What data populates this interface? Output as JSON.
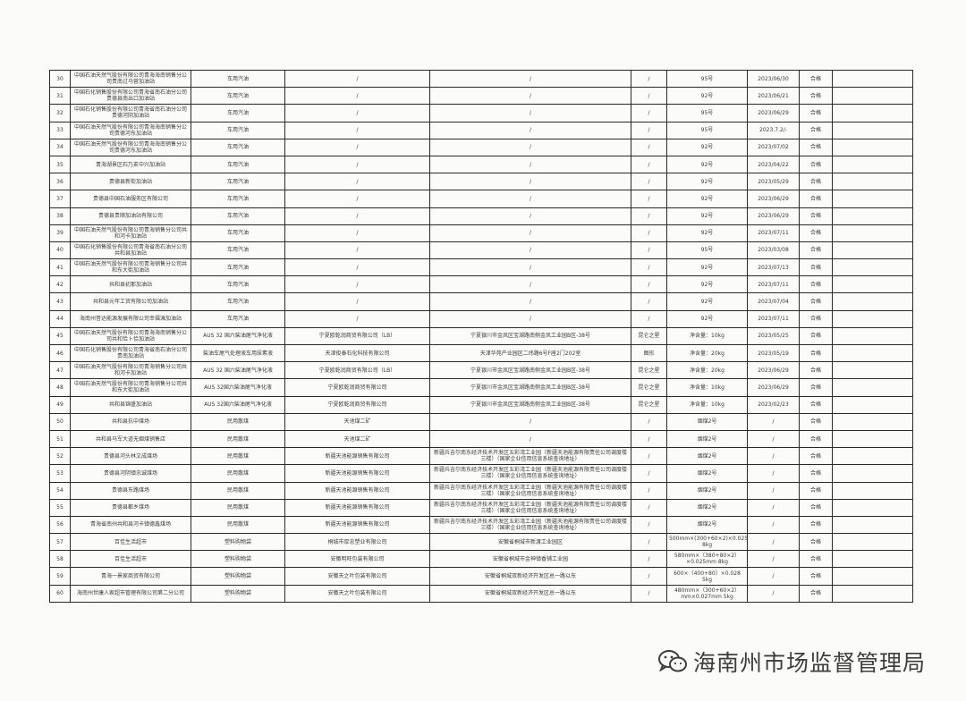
{
  "rows": [
    [
      "30",
      "中国石油天然气股份有限公司青海海南销售分公司贵南过马营加油站",
      "车用汽油",
      "/",
      "/",
      "/",
      "95号",
      "2023/06/30",
      "合格",
      ""
    ],
    [
      "31",
      "中国石化销售股份有限公司青海省南石油分公司贵德县南出口加油站",
      "车用汽油",
      "/",
      "/",
      "/",
      "92号",
      "2023/06/21",
      "合格",
      ""
    ],
    [
      "32",
      "中国石化销售股份有限公司青海省南石油分公司贵德河阴加油站",
      "车用汽油",
      "/",
      "/",
      "/",
      "95号",
      "2023/06/29",
      "合格",
      ""
    ],
    [
      "33",
      "中国石油天然气股份有限公司青海海南销售分公司贵德河东加油站",
      "车用汽油",
      "/",
      "/",
      "/",
      "95号",
      "2023.7.2/-",
      "合格",
      ""
    ],
    [
      "34",
      "中国石油天然气股份有限公司青海海南销售分公司贵德河东加油站",
      "车用汽油",
      "/",
      "/",
      "/",
      "92号",
      "2023/07/02",
      "合格",
      ""
    ],
    [
      "35",
      "青海湖景区石乃亥中兴加油站",
      "车用汽油",
      "/",
      "/",
      "/",
      "92号",
      "2023/04/22",
      "合格",
      ""
    ],
    [
      "36",
      "贵德县新街加油站",
      "车用汽油",
      "/",
      "/",
      "/",
      "92号",
      "2023/05/29",
      "合格",
      ""
    ],
    [
      "37",
      "贵德县中国石油服务区有限公司",
      "车用汽油",
      "/",
      "/",
      "/",
      "92号",
      "2023/06/29",
      "合格",
      ""
    ],
    [
      "38",
      "贵德县贵顺加油站有限公司",
      "车用汽油",
      "/",
      "/",
      "/",
      "92号",
      "2023/06/29",
      "合格",
      ""
    ],
    [
      "39",
      "中国石油天然气股份有限公司青海销售分公司共和河卡加油站",
      "车用汽油",
      "/",
      "/",
      "/",
      "92号",
      "2023/07/11",
      "合格",
      ""
    ],
    [
      "40",
      "中国石化销售股份有限公司青海省南石油分公司共和县加油站",
      "车用汽油",
      "/",
      "/",
      "/",
      "95号",
      "2023/03/08",
      "合格",
      ""
    ],
    [
      "41",
      "中国石油天然气股份有限公司青海销售分公司共和东大街加油站",
      "车用汽油",
      "/",
      "/",
      "/",
      "92号",
      "2023/07/13",
      "合格",
      ""
    ],
    [
      "42",
      "共和县初那加油站",
      "车用汽油",
      "/",
      "/",
      "/",
      "92号",
      "2023/07/11",
      "合格",
      ""
    ],
    [
      "43",
      "共和县元年工贸有限公司加油站",
      "车用汽油",
      "/",
      "/",
      "/",
      "92号",
      "2023/07/04",
      "合格",
      ""
    ],
    [
      "44",
      "海南州昔达能源发展有限公司幸福滩加油站",
      "车用汽油",
      "/",
      "/",
      "/",
      "92号",
      "2023/07/11",
      "合格",
      ""
    ],
    [
      "45",
      "中国石油天然气股份有限公司青海海南销售分公司共和恰卜恰加油站",
      "AUS 32 国六柴油尾气净化液",
      "宁夏欧乾润商贸有限公司（LB）",
      "宁夏银川市金凤区宝湖路南侧金凤工业园B区-38号",
      "昆仑之星",
      "净含量：10kg",
      "2023/05/25",
      "合格",
      ""
    ],
    [
      "46",
      "中国石化销售股份有限公司青海省南石油分公司贵南加油站",
      "柴油车尾气处理液车用尿素液",
      "天津俊泰石化科技有限公司",
      "天津华苑产业园区二纬路6号F座2门202室",
      "图形",
      "净含量：20kg",
      "2023/05/19",
      "合格",
      ""
    ],
    [
      "47",
      "中国石油天然气股份有限公司青海销售分公司共和河卡加油站",
      "AUS 32 国六柴油尾气净化液",
      "宁夏欧乾润商贸有限公司（LB）",
      "宁夏银川市金凤区宝湖路南侧金凤工业园B区-38号",
      "昆仑之星",
      "净含量：20kg",
      "2023/06/29",
      "合格",
      ""
    ],
    [
      "48",
      "中国石油天然气股份有限公司青海销售分公司共和东大街加油站",
      "AUS 32国六柴油尾气净化液",
      "宁夏欧乾润商贸有限公司",
      "宁夏银川市金凤区宝湖路南侧金凤工业园B区-38号",
      "昆仑之星",
      "净含量：10kg",
      "2023/06/29",
      "合格",
      ""
    ],
    [
      "49",
      "共和县锦盛加油站",
      "AUS 32国六柴油尾气净化液",
      "宁夏欧乾润商贸有限公司",
      "宁夏银川市金凤区宝湖路南侧金凤工业园B区-38号",
      "昆仑之星",
      "净含量：10kg",
      "2023/02/23",
      "合格",
      ""
    ],
    [
      "50",
      "共和县抗中煤场",
      "民用散煤",
      "天池煤二矿",
      "/",
      "/",
      "烟煤2号",
      "/",
      "合格",
      ""
    ],
    [
      "51",
      "共和县马军大道无烟煤销售店",
      "民用散煤",
      "天池煤二矿",
      "/",
      "/",
      "烟煤2号",
      "/",
      "合格",
      ""
    ],
    [
      "52",
      "贵德县河头林文成煤场",
      "民用散煤",
      "新疆天池能源销售有限公司",
      "新疆兵吉尔南东经济技术开发区五彩湾工业园（新疆天池能源有限责任公司调度楼三楼）（国家企业信用信息系统查询地址）",
      "/",
      "烟煤2号",
      "/",
      "合格",
      ""
    ],
    [
      "53",
      "贵德县河阴镇忠诚煤场",
      "民用散煤",
      "新疆天池能源销售有限公司",
      "新疆兵吉尔南东经济技术开发区五彩湾工业园（新疆天池能源有限责任公司调度楼三楼）（国家企业信用信息系统查询地址）",
      "/",
      "烟煤2号",
      "/",
      "合格",
      ""
    ],
    [
      "54",
      "贵德县东路煤场",
      "民用散煤",
      "新疆天池能源销售有限公司",
      "新疆兵吉尔南东经济技术开发区五彩湾工业园（新疆天池能源有限责任公司调度楼三楼）（国家企业信用信息系统查询地址）",
      "/",
      "烟煤2号",
      "/",
      "合格",
      ""
    ],
    [
      "55",
      "贵德县都乡煤场",
      "民用散煤",
      "新疆天池能源销售有限公司",
      "新疆兵吉尔南东经济技术开发区五彩湾工业园（新疆天池能源有限责任公司调度楼三楼）（国家企业信用信息系统查询地址）",
      "/",
      "烟煤2号",
      "/",
      "合格",
      ""
    ],
    [
      "56",
      "青海省南州共和县河卡镇德鑫煤场",
      "民用散煤",
      "新疆天池能源销售有限公司",
      "新疆兵吉尔南东经济技术开发区五彩湾工业园（新疆天池能源有限责任公司调度楼三楼）（国家企业信用信息系统查询地址）",
      "/",
      "烟煤2号",
      "/",
      "合格",
      ""
    ],
    [
      "57",
      "百佳生活超市",
      "塑料购物袋",
      "桐城市厚忠塑业有限公司",
      "安徽省桐城市新渡工业园区",
      "/",
      "500mm×(300+60×2)×0.025mm 8kg",
      "/",
      "合格",
      ""
    ],
    [
      "58",
      "百佳生活超市",
      "塑料购物袋",
      "安徽明旺包装有限公司",
      "安徽省桐城市金神镇香铺工业园",
      "/",
      "580mm×（380+80×2）×0.025mm 8kg",
      "/",
      "合格",
      ""
    ],
    [
      "59",
      "青海一景家商贸有限公司",
      "塑料购物袋",
      "安徽天之叶包装有限公司",
      "安徽省桐城双新经济开发区总一路以东",
      "/",
      "600×（400+80）×0.028 5kg",
      "/",
      "合格",
      ""
    ],
    [
      "60",
      "海南州世康人家超市管理有限公司第二分公司",
      "塑料购物袋",
      "安徽天之叶包装有限公司",
      "安徽省桐城双新经济开发区总一路以东",
      "/",
      "480mm×（300+60×2）mm×0.027mm 5kg",
      "/",
      "合格",
      ""
    ]
  ],
  "watermark": {
    "text": "海南州市场监督管理局",
    "icon": "wechat-icon"
  }
}
